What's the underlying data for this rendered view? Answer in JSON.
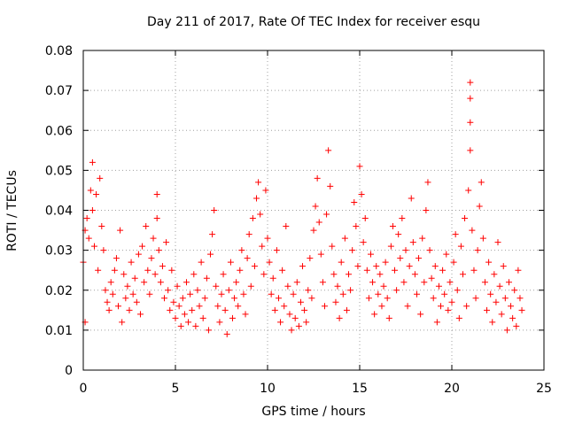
{
  "chart_data": {
    "type": "scatter",
    "title": "Day 211 of 2017, Rate Of TEC Index for receiver esqu",
    "xlabel": "GPS time / hours",
    "ylabel": "ROTI / TECUs",
    "xlim": [
      0,
      25
    ],
    "ylim": [
      0,
      0.08
    ],
    "x_ticks": [
      0,
      5,
      10,
      15,
      20,
      25
    ],
    "y_ticks": [
      0,
      0.01,
      0.02,
      0.03,
      0.04,
      0.05,
      0.06,
      0.07,
      0.08
    ],
    "x_tick_labels": [
      "0",
      "5",
      "10",
      "15",
      "20",
      "25"
    ],
    "y_tick_labels": [
      "0",
      "0.01",
      "0.02",
      "0.03",
      "0.04",
      "0.05",
      "0.06",
      "0.07",
      "0.08"
    ],
    "grid": true,
    "marker": "plus",
    "color": "#ff0000",
    "series": [
      {
        "name": "ROTI",
        "points": [
          [
            0.0,
            0.027
          ],
          [
            0.1,
            0.035
          ],
          [
            0.1,
            0.012
          ],
          [
            0.2,
            0.038
          ],
          [
            0.3,
            0.033
          ],
          [
            0.4,
            0.045
          ],
          [
            0.5,
            0.052
          ],
          [
            0.5,
            0.04
          ],
          [
            0.6,
            0.031
          ],
          [
            0.7,
            0.044
          ],
          [
            0.8,
            0.025
          ],
          [
            0.9,
            0.048
          ],
          [
            1.0,
            0.036
          ],
          [
            1.1,
            0.03
          ],
          [
            1.2,
            0.02
          ],
          [
            1.3,
            0.017
          ],
          [
            1.4,
            0.015
          ],
          [
            1.5,
            0.022
          ],
          [
            1.6,
            0.019
          ],
          [
            1.7,
            0.025
          ],
          [
            1.8,
            0.028
          ],
          [
            1.9,
            0.016
          ],
          [
            2.0,
            0.035
          ],
          [
            2.1,
            0.012
          ],
          [
            2.2,
            0.024
          ],
          [
            2.3,
            0.018
          ],
          [
            2.4,
            0.021
          ],
          [
            2.5,
            0.015
          ],
          [
            2.6,
            0.027
          ],
          [
            2.7,
            0.019
          ],
          [
            2.8,
            0.023
          ],
          [
            2.9,
            0.017
          ],
          [
            3.0,
            0.029
          ],
          [
            3.1,
            0.014
          ],
          [
            3.2,
            0.031
          ],
          [
            3.3,
            0.022
          ],
          [
            3.4,
            0.036
          ],
          [
            3.5,
            0.025
          ],
          [
            3.6,
            0.019
          ],
          [
            3.7,
            0.028
          ],
          [
            3.8,
            0.033
          ],
          [
            3.9,
            0.024
          ],
          [
            4.0,
            0.044
          ],
          [
            4.0,
            0.038
          ],
          [
            4.1,
            0.03
          ],
          [
            4.2,
            0.022
          ],
          [
            4.3,
            0.026
          ],
          [
            4.4,
            0.018
          ],
          [
            4.5,
            0.032
          ],
          [
            4.6,
            0.02
          ],
          [
            4.7,
            0.015
          ],
          [
            4.8,
            0.025
          ],
          [
            4.9,
            0.017
          ],
          [
            5.0,
            0.013
          ],
          [
            5.1,
            0.021
          ],
          [
            5.2,
            0.016
          ],
          [
            5.3,
            0.011
          ],
          [
            5.4,
            0.018
          ],
          [
            5.5,
            0.014
          ],
          [
            5.6,
            0.022
          ],
          [
            5.7,
            0.012
          ],
          [
            5.8,
            0.019
          ],
          [
            5.9,
            0.015
          ],
          [
            6.0,
            0.024
          ],
          [
            6.1,
            0.011
          ],
          [
            6.2,
            0.02
          ],
          [
            6.3,
            0.016
          ],
          [
            6.4,
            0.027
          ],
          [
            6.5,
            0.013
          ],
          [
            6.6,
            0.018
          ],
          [
            6.7,
            0.023
          ],
          [
            6.8,
            0.01
          ],
          [
            6.9,
            0.029
          ],
          [
            7.0,
            0.034
          ],
          [
            7.1,
            0.04
          ],
          [
            7.2,
            0.021
          ],
          [
            7.3,
            0.016
          ],
          [
            7.4,
            0.012
          ],
          [
            7.5,
            0.019
          ],
          [
            7.6,
            0.024
          ],
          [
            7.7,
            0.015
          ],
          [
            7.8,
            0.009
          ],
          [
            7.9,
            0.02
          ],
          [
            8.0,
            0.027
          ],
          [
            8.1,
            0.013
          ],
          [
            8.2,
            0.018
          ],
          [
            8.3,
            0.022
          ],
          [
            8.4,
            0.016
          ],
          [
            8.5,
            0.025
          ],
          [
            8.6,
            0.03
          ],
          [
            8.7,
            0.019
          ],
          [
            8.8,
            0.014
          ],
          [
            8.9,
            0.028
          ],
          [
            9.0,
            0.034
          ],
          [
            9.1,
            0.021
          ],
          [
            9.2,
            0.038
          ],
          [
            9.3,
            0.026
          ],
          [
            9.4,
            0.043
          ],
          [
            9.5,
            0.047
          ],
          [
            9.6,
            0.039
          ],
          [
            9.7,
            0.031
          ],
          [
            9.8,
            0.024
          ],
          [
            9.9,
            0.045
          ],
          [
            10.0,
            0.033
          ],
          [
            10.1,
            0.027
          ],
          [
            10.2,
            0.019
          ],
          [
            10.3,
            0.023
          ],
          [
            10.4,
            0.015
          ],
          [
            10.5,
            0.03
          ],
          [
            10.6,
            0.018
          ],
          [
            10.7,
            0.012
          ],
          [
            10.8,
            0.025
          ],
          [
            10.9,
            0.016
          ],
          [
            11.0,
            0.036
          ],
          [
            11.1,
            0.021
          ],
          [
            11.2,
            0.014
          ],
          [
            11.3,
            0.01
          ],
          [
            11.4,
            0.019
          ],
          [
            11.5,
            0.013
          ],
          [
            11.6,
            0.022
          ],
          [
            11.7,
            0.011
          ],
          [
            11.8,
            0.017
          ],
          [
            11.9,
            0.026
          ],
          [
            12.0,
            0.015
          ],
          [
            12.1,
            0.012
          ],
          [
            12.2,
            0.02
          ],
          [
            12.3,
            0.028
          ],
          [
            12.4,
            0.018
          ],
          [
            12.5,
            0.035
          ],
          [
            12.6,
            0.041
          ],
          [
            12.7,
            0.048
          ],
          [
            12.8,
            0.037
          ],
          [
            12.9,
            0.029
          ],
          [
            13.0,
            0.022
          ],
          [
            13.1,
            0.016
          ],
          [
            13.2,
            0.039
          ],
          [
            13.3,
            0.055
          ],
          [
            13.4,
            0.046
          ],
          [
            13.5,
            0.031
          ],
          [
            13.6,
            0.024
          ],
          [
            13.7,
            0.017
          ],
          [
            13.8,
            0.021
          ],
          [
            13.9,
            0.013
          ],
          [
            14.0,
            0.027
          ],
          [
            14.1,
            0.019
          ],
          [
            14.2,
            0.033
          ],
          [
            14.3,
            0.015
          ],
          [
            14.4,
            0.024
          ],
          [
            14.5,
            0.02
          ],
          [
            14.6,
            0.03
          ],
          [
            14.7,
            0.042
          ],
          [
            14.8,
            0.036
          ],
          [
            14.9,
            0.026
          ],
          [
            15.0,
            0.051
          ],
          [
            15.1,
            0.044
          ],
          [
            15.2,
            0.032
          ],
          [
            15.3,
            0.038
          ],
          [
            15.4,
            0.025
          ],
          [
            15.5,
            0.018
          ],
          [
            15.6,
            0.029
          ],
          [
            15.7,
            0.022
          ],
          [
            15.8,
            0.014
          ],
          [
            15.9,
            0.026
          ],
          [
            16.0,
            0.019
          ],
          [
            16.1,
            0.024
          ],
          [
            16.2,
            0.016
          ],
          [
            16.3,
            0.021
          ],
          [
            16.4,
            0.027
          ],
          [
            16.5,
            0.018
          ],
          [
            16.6,
            0.013
          ],
          [
            16.7,
            0.031
          ],
          [
            16.8,
            0.036
          ],
          [
            16.9,
            0.025
          ],
          [
            17.0,
            0.02
          ],
          [
            17.1,
            0.034
          ],
          [
            17.2,
            0.028
          ],
          [
            17.3,
            0.038
          ],
          [
            17.4,
            0.022
          ],
          [
            17.5,
            0.03
          ],
          [
            17.6,
            0.016
          ],
          [
            17.7,
            0.026
          ],
          [
            17.8,
            0.043
          ],
          [
            17.9,
            0.032
          ],
          [
            18.0,
            0.024
          ],
          [
            18.1,
            0.019
          ],
          [
            18.2,
            0.028
          ],
          [
            18.3,
            0.014
          ],
          [
            18.4,
            0.033
          ],
          [
            18.5,
            0.022
          ],
          [
            18.6,
            0.04
          ],
          [
            18.7,
            0.047
          ],
          [
            18.8,
            0.03
          ],
          [
            18.9,
            0.023
          ],
          [
            19.0,
            0.018
          ],
          [
            19.1,
            0.026
          ],
          [
            19.2,
            0.012
          ],
          [
            19.3,
            0.021
          ],
          [
            19.4,
            0.016
          ],
          [
            19.5,
            0.025
          ],
          [
            19.6,
            0.019
          ],
          [
            19.7,
            0.029
          ],
          [
            19.8,
            0.015
          ],
          [
            19.9,
            0.022
          ],
          [
            20.0,
            0.017
          ],
          [
            20.1,
            0.027
          ],
          [
            20.2,
            0.034
          ],
          [
            20.3,
            0.02
          ],
          [
            20.4,
            0.013
          ],
          [
            20.5,
            0.031
          ],
          [
            20.6,
            0.024
          ],
          [
            20.7,
            0.038
          ],
          [
            20.8,
            0.016
          ],
          [
            20.9,
            0.045
          ],
          [
            21.0,
            0.072
          ],
          [
            21.0,
            0.068
          ],
          [
            21.0,
            0.062
          ],
          [
            21.0,
            0.055
          ],
          [
            21.1,
            0.035
          ],
          [
            21.2,
            0.025
          ],
          [
            21.3,
            0.018
          ],
          [
            21.4,
            0.03
          ],
          [
            21.5,
            0.041
          ],
          [
            21.6,
            0.047
          ],
          [
            21.7,
            0.033
          ],
          [
            21.8,
            0.022
          ],
          [
            21.9,
            0.015
          ],
          [
            22.0,
            0.027
          ],
          [
            22.1,
            0.019
          ],
          [
            22.2,
            0.012
          ],
          [
            22.3,
            0.024
          ],
          [
            22.4,
            0.017
          ],
          [
            22.5,
            0.032
          ],
          [
            22.6,
            0.021
          ],
          [
            22.7,
            0.014
          ],
          [
            22.8,
            0.026
          ],
          [
            22.9,
            0.018
          ],
          [
            23.0,
            0.01
          ],
          [
            23.1,
            0.022
          ],
          [
            23.2,
            0.016
          ],
          [
            23.3,
            0.013
          ],
          [
            23.4,
            0.02
          ],
          [
            23.5,
            0.011
          ],
          [
            23.6,
            0.025
          ],
          [
            23.7,
            0.018
          ],
          [
            23.8,
            0.015
          ]
        ]
      }
    ]
  }
}
